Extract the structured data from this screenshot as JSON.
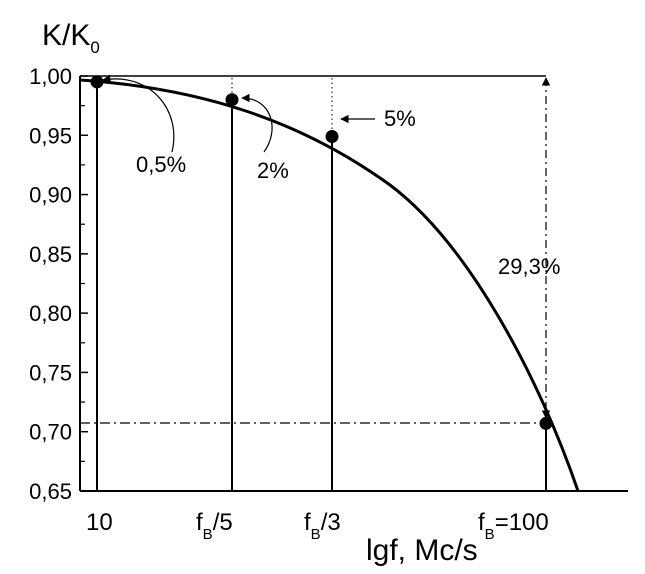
{
  "chart_data": {
    "type": "line",
    "ylabel": {
      "main": "K/K",
      "sub": "0"
    },
    "xlabel": "lgf, Mc/s",
    "ylim": [
      0.65,
      1.0
    ],
    "yticks": [
      "0,65",
      "0,70",
      "0,75",
      "0,80",
      "0,85",
      "0,90",
      "0,95",
      "1,00"
    ],
    "xticks": [
      {
        "main": "10",
        "sub": "",
        "suffix": ""
      },
      {
        "main": "f",
        "sub": "B",
        "suffix": "/5"
      },
      {
        "main": "f",
        "sub": "B",
        "suffix": "/3"
      },
      {
        "main": "f",
        "sub": "B",
        "suffix": "=100"
      }
    ],
    "points": [
      {
        "x": "10",
        "y": 0.995
      },
      {
        "x": "fB/5",
        "y": 0.98
      },
      {
        "x": "fB/3",
        "y": 0.949
      },
      {
        "x": "fB=100",
        "y": 0.707
      }
    ],
    "reference_level": 0.707,
    "annotations": [
      "0,5%",
      "2%",
      "5%",
      "29,3%"
    ],
    "grid": false
  }
}
